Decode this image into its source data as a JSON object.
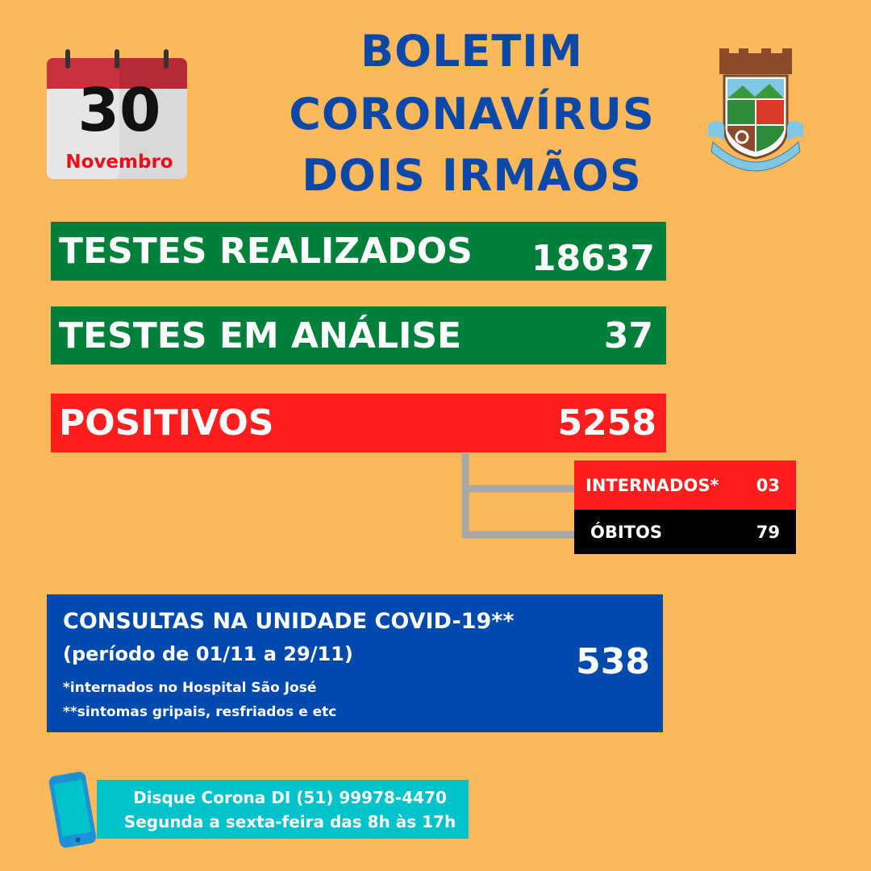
{
  "calendar": {
    "day": "30",
    "month": "Novembro"
  },
  "header": {
    "title": [
      "BOLETIM",
      "CORONAVÍRUS",
      "DOIS IRMÃOS"
    ]
  },
  "stats": [
    {
      "label": "TESTES REALIZADOS",
      "value": "18637"
    },
    {
      "label": "TESTES EM ANÁLISE",
      "value": "37"
    },
    {
      "label": "POSITIVOS",
      "value": "5258"
    }
  ],
  "substats": [
    {
      "label": "INTERNADOS*",
      "value": "03"
    },
    {
      "label": "ÓBITOS",
      "value": "79"
    }
  ],
  "consultas": {
    "title": "CONSULTAS NA UNIDADE COVID-19**",
    "period": "(período de 01/11 a 29/11)",
    "value": "538",
    "notes": [
      "*internados no Hospital São José",
      "**sintomas gripais, resfriados e etc"
    ]
  },
  "contact": [
    "Disque Corona DI (51) 99978-4470",
    "Segunda a sexta-feira das 8h às 17h"
  ]
}
